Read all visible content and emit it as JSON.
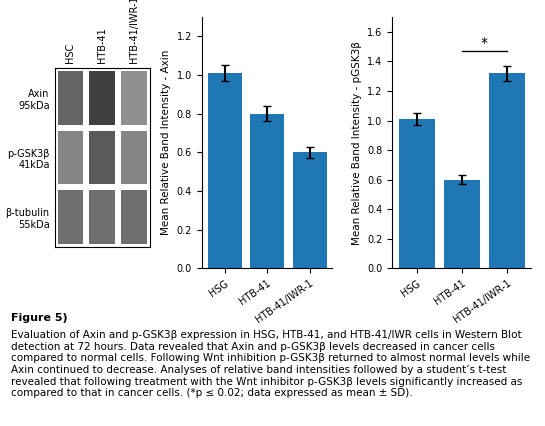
{
  "chart_data": [
    {
      "type": "heatmap",
      "x": [
        "HSC",
        "HTB-41",
        "HTB-41/IWR-1"
      ],
      "y": [
        "Axin\n95kDa",
        "p-GSK3β\n41kDa",
        "β-tubulin\n55kDa"
      ],
      "values": [
        [
          0.85,
          1.0,
          0.65
        ],
        [
          0.7,
          0.9,
          0.7
        ],
        [
          0.8,
          0.8,
          0.8
        ]
      ]
    },
    {
      "type": "bar",
      "categories": [
        "HSG",
        "HTB-41",
        "HTB-41/IWR-1"
      ],
      "values": [
        1.01,
        0.8,
        0.6
      ],
      "errors": [
        0.04,
        0.04,
        0.03
      ],
      "y_label": "Mean Relative Band Intensity - Axin",
      "ylim": [
        0,
        1.3
      ],
      "yticks": [
        {
          "value": 0,
          "label": "0.0"
        },
        0.2,
        0.4,
        0.6,
        0.8,
        {
          "value": 1,
          "label": "1.0"
        },
        1.2
      ]
    },
    {
      "type": "bar",
      "categories": [
        "HSG",
        "HTB-41",
        "HTB-41/IWR-1"
      ],
      "values": [
        1.01,
        0.6,
        1.32
      ],
      "errors": [
        0.04,
        0.03,
        0.05
      ],
      "y_label": "Mean Relative Band Intensity - pGSK3β",
      "ylim": [
        0,
        1.7
      ],
      "yticks": [
        {
          "value": 0,
          "label": "0.0"
        },
        0.2,
        0.4,
        0.6,
        0.8,
        {
          "value": 1,
          "label": "1.0"
        },
        1.2,
        1.4,
        1.6
      ],
      "annotations": [
        {
          "text": "*",
          "x": [
            "HTB-41",
            "HTB-41/IWR-1"
          ],
          "y": 1.47
        }
      ]
    }
  ],
  "caption": {
    "title": "Figure 5)",
    "text": "Evaluation of Axin and p-GSK3β expression in HSG, HTB-41, and HTB-41/IWR cells in Western Blot detection at 72 hours. Data revealed that Axin and p-GSK3β levels decreased in cancer cells compared to normal cells. Following Wnt inhibition p-GSK3β returned to almost normal levels while Axin continued to decrease. Analyses of relative band intensities followed by a student’s t-test revealed that following treatment with the Wnt inhibitor p-GSK3β levels significantly increased as compared to that in cancer cells. (*p ≤ 0.02; data expressed as mean ± SD)."
  }
}
